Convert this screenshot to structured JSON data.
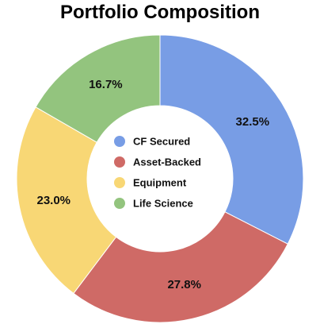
{
  "chart_data": {
    "type": "pie",
    "title": "Portfolio Composition",
    "donut": true,
    "start_angle": "12 o'clock",
    "direction": "clockwise",
    "legend": "center",
    "slices": [
      {
        "label": "CF Secured",
        "value": 32.5,
        "display": "32.5%",
        "color": "#789DE5"
      },
      {
        "label": "Asset-Backed",
        "value": 27.8,
        "display": "27.8%",
        "color": "#CF6A66"
      },
      {
        "label": "Equipment",
        "value": 23.0,
        "display": "23.0%",
        "color": "#F8D775"
      },
      {
        "label": "Life Science",
        "value": 16.7,
        "display": "16.7%",
        "color": "#93C47E"
      }
    ]
  }
}
